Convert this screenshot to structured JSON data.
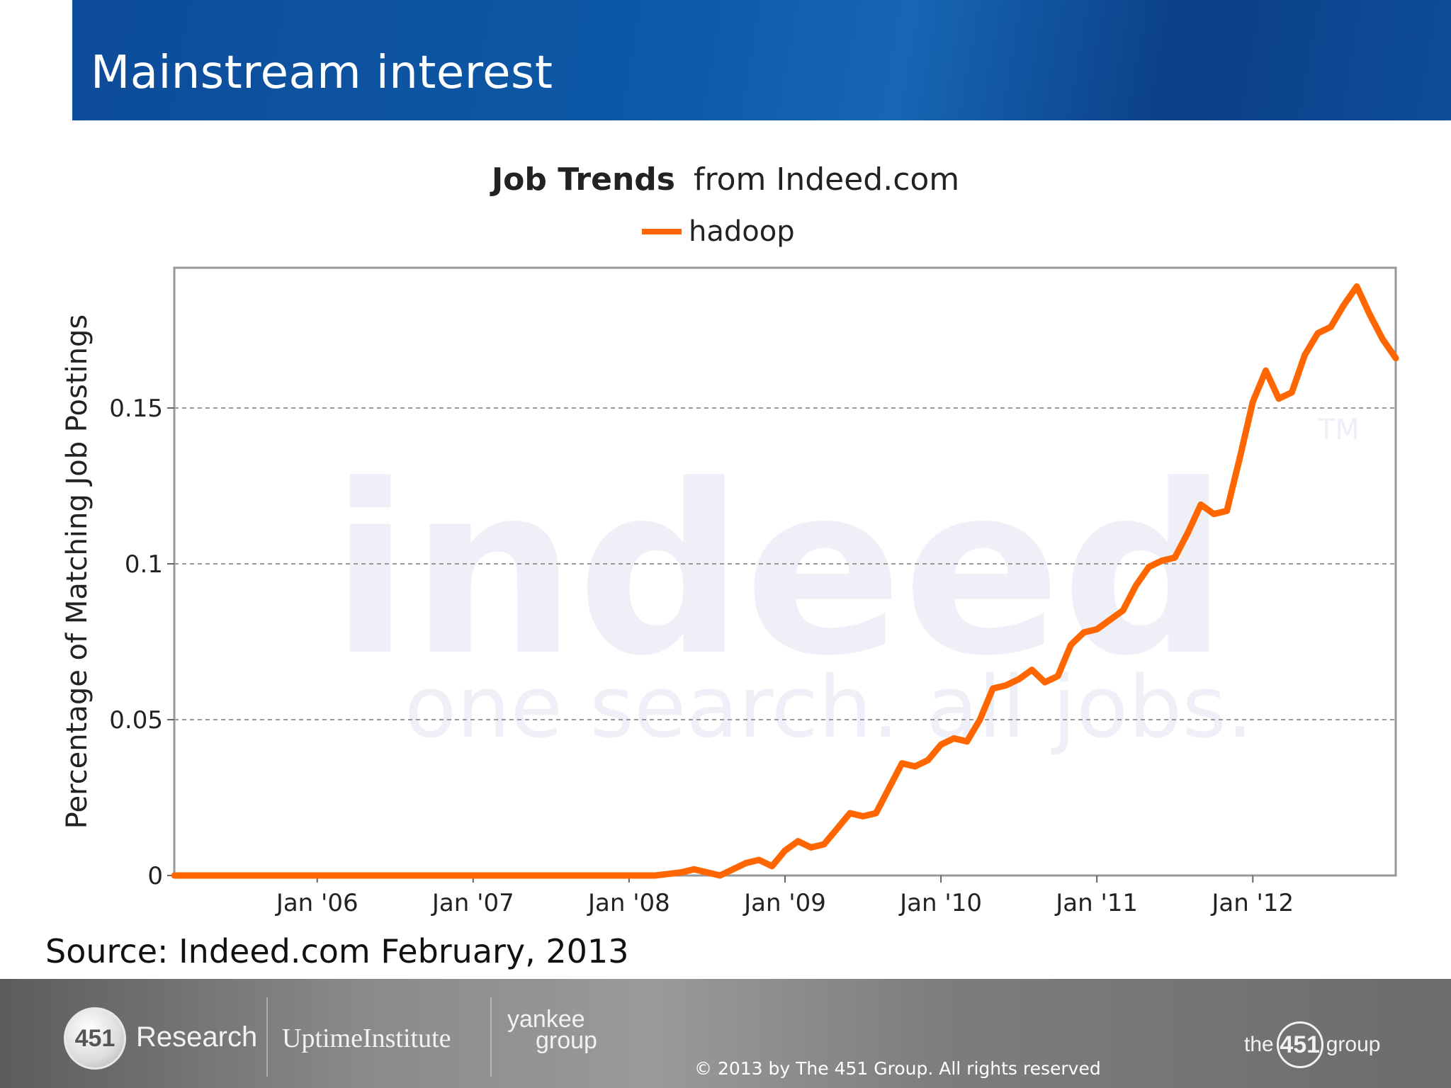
{
  "slide": {
    "title": "Mainstream interest",
    "source": "Source: Indeed.com February, 2013"
  },
  "chart_data": {
    "type": "line",
    "title_bold": "Job Trends",
    "title_rest": "from Indeed.com",
    "ylabel": "Percentage of Matching Job Postings",
    "xlabel": "",
    "ylim": [
      0,
      0.195
    ],
    "xlim": [
      "2005-02",
      "2012-12"
    ],
    "yticks": [
      0,
      0.05,
      0.1,
      0.15
    ],
    "ytick_labels": [
      "0",
      "0.05",
      "0.1",
      "0.15"
    ],
    "xtick_labels": [
      "Jan '06",
      "Jan '07",
      "Jan '08",
      "Jan '09",
      "Jan '10",
      "Jan '11",
      "Jan '12"
    ],
    "grid": true,
    "legend_position": "top-center",
    "series": [
      {
        "name": "hadoop",
        "color": "#ff6600",
        "points": [
          [
            "2005-02",
            0
          ],
          [
            "2005-06",
            0
          ],
          [
            "2005-10",
            0
          ],
          [
            "2006-02",
            0
          ],
          [
            "2006-06",
            0
          ],
          [
            "2006-10",
            0
          ],
          [
            "2007-02",
            0
          ],
          [
            "2007-06",
            0
          ],
          [
            "2007-10",
            0
          ],
          [
            "2008-01",
            0
          ],
          [
            "2008-03",
            0
          ],
          [
            "2008-04",
            0.0005
          ],
          [
            "2008-05",
            0.001
          ],
          [
            "2008-06",
            0.002
          ],
          [
            "2008-07",
            0.001
          ],
          [
            "2008-08",
            0
          ],
          [
            "2008-09",
            0.002
          ],
          [
            "2008-10",
            0.004
          ],
          [
            "2008-11",
            0.005
          ],
          [
            "2008-12",
            0.003
          ],
          [
            "2009-01",
            0.008
          ],
          [
            "2009-02",
            0.011
          ],
          [
            "2009-03",
            0.009
          ],
          [
            "2009-04",
            0.01
          ],
          [
            "2009-05",
            0.015
          ],
          [
            "2009-06",
            0.02
          ],
          [
            "2009-07",
            0.019
          ],
          [
            "2009-08",
            0.02
          ],
          [
            "2009-09",
            0.028
          ],
          [
            "2009-10",
            0.036
          ],
          [
            "2009-11",
            0.035
          ],
          [
            "2009-12",
            0.037
          ],
          [
            "2010-01",
            0.042
          ],
          [
            "2010-02",
            0.044
          ],
          [
            "2010-03",
            0.043
          ],
          [
            "2010-04",
            0.05
          ],
          [
            "2010-05",
            0.06
          ],
          [
            "2010-06",
            0.061
          ],
          [
            "2010-07",
            0.063
          ],
          [
            "2010-08",
            0.066
          ],
          [
            "2010-09",
            0.062
          ],
          [
            "2010-10",
            0.064
          ],
          [
            "2010-11",
            0.074
          ],
          [
            "2010-12",
            0.078
          ],
          [
            "2011-01",
            0.079
          ],
          [
            "2011-02",
            0.082
          ],
          [
            "2011-03",
            0.085
          ],
          [
            "2011-04",
            0.093
          ],
          [
            "2011-05",
            0.099
          ],
          [
            "2011-06",
            0.101
          ],
          [
            "2011-07",
            0.102
          ],
          [
            "2011-08",
            0.11
          ],
          [
            "2011-09",
            0.119
          ],
          [
            "2011-10",
            0.116
          ],
          [
            "2011-11",
            0.117
          ],
          [
            "2011-12",
            0.134
          ],
          [
            "2012-01",
            0.152
          ],
          [
            "2012-02",
            0.162
          ],
          [
            "2012-03",
            0.153
          ],
          [
            "2012-04",
            0.155
          ],
          [
            "2012-05",
            0.167
          ],
          [
            "2012-06",
            0.174
          ],
          [
            "2012-07",
            0.176
          ],
          [
            "2012-08",
            0.183
          ],
          [
            "2012-09",
            0.189
          ],
          [
            "2012-10",
            0.18
          ],
          [
            "2012-11",
            0.172
          ],
          [
            "2012-12",
            0.166
          ]
        ]
      }
    ]
  },
  "watermark": {
    "word": "indeed",
    "tagline": "one search. all jobs.",
    "tm": "TM"
  },
  "footer": {
    "logo_451": "451",
    "research": "Research",
    "uptime": "UptimeInstitute",
    "yankee_top": "yankee",
    "yankee_bottom": "group",
    "the451_left": "the",
    "the451_num": "451",
    "the451_right": "group",
    "copyright": "© 2013 by The 451 Group. All rights reserved"
  }
}
